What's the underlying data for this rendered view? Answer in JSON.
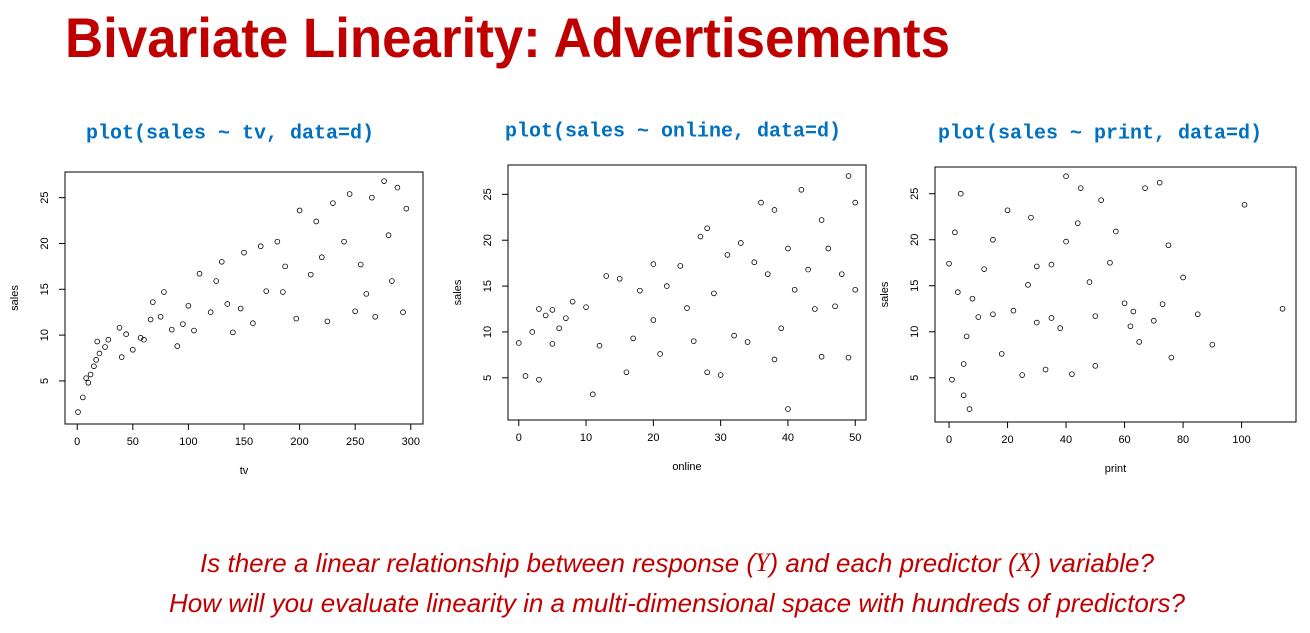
{
  "title": "Bivariate Linearity: Advertisements",
  "questions": [
    [
      "Is there a linear relationship between response (",
      "Y",
      ") and each predictor (",
      "X",
      ") variable?"
    ],
    [
      "How will you evaluate linearity in a multi-dimensional space with hundreds of predictors?"
    ]
  ],
  "chart_data": [
    {
      "type": "scatter",
      "caption": "plot(sales ~ tv, data=d)",
      "xlabel": "tv",
      "ylabel": "sales",
      "xlim": [
        -11,
        311
      ],
      "ylim": [
        0.3,
        27.8
      ],
      "xticks": [
        0,
        50,
        100,
        150,
        200,
        250,
        300
      ],
      "yticks": [
        5,
        10,
        15,
        20,
        25
      ],
      "x": [
        0.7,
        5,
        8,
        10,
        12,
        15,
        17,
        18,
        20,
        25,
        28,
        38,
        40,
        44,
        50,
        57,
        66,
        68,
        75,
        78,
        90,
        95,
        100,
        110,
        120,
        125,
        130,
        140,
        147,
        150,
        158,
        165,
        170,
        180,
        187,
        197,
        200,
        210,
        215,
        220,
        225,
        230,
        240,
        245,
        250,
        255,
        265,
        268,
        276,
        283,
        288,
        293,
        296,
        280,
        260,
        185,
        135,
        105,
        85,
        60
      ],
      "y": [
        1.6,
        3.2,
        5.3,
        4.8,
        5.7,
        6.6,
        7.3,
        9.3,
        8.0,
        8.7,
        9.5,
        10.8,
        7.6,
        10.1,
        8.4,
        9.7,
        11.7,
        13.6,
        12.0,
        14.7,
        8.8,
        11.2,
        13.2,
        16.7,
        12.5,
        15.9,
        18.0,
        10.3,
        12.9,
        19.0,
        11.3,
        19.7,
        14.8,
        20.2,
        17.5,
        11.8,
        23.6,
        16.6,
        22.4,
        18.5,
        11.5,
        24.4,
        20.2,
        25.4,
        12.6,
        17.7,
        25.0,
        12.0,
        26.8,
        15.9,
        26.1,
        12.5,
        23.8,
        20.9,
        14.5,
        14.7,
        13.4,
        10.5,
        10.6,
        9.5
      ]
    },
    {
      "type": "scatter",
      "caption": "plot(sales ~ online, data=d)",
      "xlabel": "online",
      "ylabel": "sales",
      "xlim": [
        -1.6,
        51.6
      ],
      "ylim": [
        0.4,
        28.2
      ],
      "xticks": [
        0,
        10,
        20,
        30,
        40,
        50
      ],
      "yticks": [
        5,
        10,
        15,
        20,
        25
      ],
      "x": [
        0,
        1,
        2,
        3,
        3,
        5,
        5,
        7,
        8,
        10,
        11,
        12,
        13,
        15,
        16,
        17,
        18,
        20,
        20,
        21,
        22,
        24,
        25,
        26,
        27,
        28,
        28,
        29,
        30,
        31,
        33,
        34,
        35,
        36,
        37,
        38,
        39,
        40,
        40,
        41,
        42,
        43,
        44,
        45,
        46,
        47,
        48,
        49,
        49,
        50,
        50,
        45,
        38,
        32,
        6,
        4
      ],
      "y": [
        8.8,
        5.2,
        10,
        12.5,
        4.8,
        12.4,
        8.7,
        11.5,
        13.3,
        12.7,
        3.2,
        8.5,
        16.1,
        15.8,
        5.6,
        9.3,
        14.5,
        17.4,
        11.3,
        7.6,
        15.0,
        17.2,
        12.6,
        9.0,
        20.4,
        5.6,
        21.3,
        14.2,
        5.3,
        18.4,
        19.7,
        8.9,
        17.6,
        24.1,
        16.3,
        23.3,
        10.4,
        1.6,
        19.1,
        14.6,
        25.5,
        16.8,
        12.5,
        22.2,
        19.1,
        12.8,
        16.3,
        27.0,
        7.2,
        24.1,
        14.6,
        7.3,
        7.0,
        9.6,
        10.4,
        11.8
      ]
    },
    {
      "type": "scatter",
      "caption": "plot(sales ~ print, data=d)",
      "xlabel": "print",
      "ylabel": "sales",
      "xlim": [
        -4.8,
        118.6
      ],
      "ylim": [
        0.2,
        27.9
      ],
      "xticks": [
        0,
        20,
        40,
        60,
        80,
        100
      ],
      "yticks": [
        5,
        10,
        15,
        20,
        25
      ],
      "x": [
        0,
        1,
        2,
        3,
        4,
        5,
        6,
        7,
        8,
        10,
        12,
        15,
        18,
        20,
        22,
        25,
        27,
        28,
        30,
        33,
        35,
        38,
        40,
        42,
        44,
        45,
        48,
        50,
        50,
        52,
        55,
        57,
        60,
        63,
        65,
        67,
        70,
        72,
        75,
        76,
        80,
        85,
        90,
        101,
        114,
        73,
        62,
        30,
        15,
        5,
        40,
        35
      ],
      "y": [
        17.4,
        4.8,
        20.8,
        14.3,
        25.0,
        3.1,
        9.5,
        1.6,
        13.6,
        11.6,
        16.8,
        11.9,
        7.6,
        23.2,
        12.3,
        5.3,
        15.1,
        22.4,
        11.0,
        5.9,
        17.3,
        10.4,
        19.8,
        5.4,
        21.8,
        25.6,
        15.4,
        6.3,
        11.7,
        24.3,
        17.5,
        20.9,
        13.1,
        12.2,
        8.9,
        25.6,
        11.2,
        26.2,
        19.4,
        7.2,
        15.9,
        11.9,
        8.6,
        23.8,
        12.5,
        13.0,
        10.6,
        17.1,
        20.0,
        6.5,
        26.9,
        11.5
      ]
    }
  ]
}
